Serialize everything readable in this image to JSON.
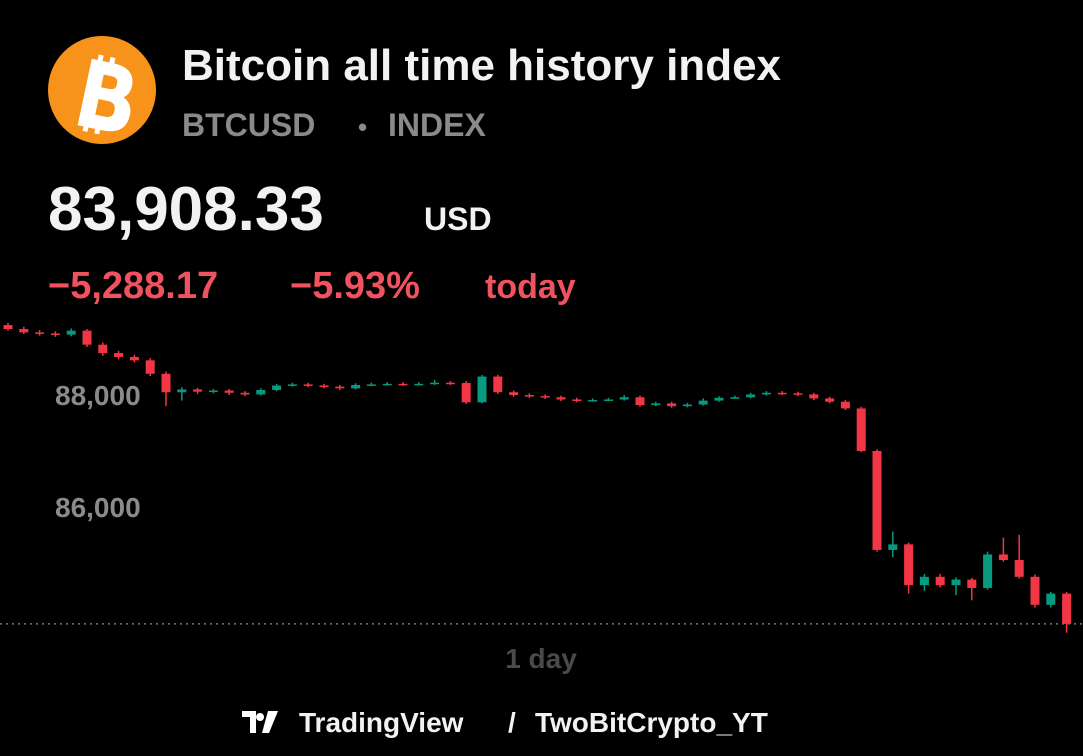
{
  "header": {
    "title": "Bitcoin all time history index",
    "symbol": "BTCUSD",
    "dot": "•",
    "exchange": "INDEX",
    "price": "83,908.33",
    "currency": "USD",
    "change": "−5,288.17",
    "change_percent": "−5.93%",
    "period": "today"
  },
  "chart_data": {
    "type": "candlestick",
    "up_color": "#089981",
    "down_color": "#f23645",
    "ylim": [
      83620,
      89520
    ],
    "yticks": [
      {
        "value": 88000,
        "label": "88,000"
      },
      {
        "value": 86000,
        "label": "86,000"
      }
    ],
    "x_label": "1 day",
    "ohlc": [
      [
        89250,
        89290,
        89150,
        89180
      ],
      [
        89180,
        89220,
        89090,
        89120
      ],
      [
        89120,
        89160,
        89060,
        89100
      ],
      [
        89100,
        89140,
        89040,
        89080
      ],
      [
        89080,
        89190,
        89050,
        89150
      ],
      [
        89150,
        89180,
        88860,
        88900
      ],
      [
        88900,
        88940,
        88700,
        88750
      ],
      [
        88750,
        88790,
        88640,
        88680
      ],
      [
        88680,
        88720,
        88580,
        88620
      ],
      [
        88620,
        88660,
        88340,
        88380
      ],
      [
        88380,
        88420,
        87800,
        88050
      ],
      [
        88050,
        88140,
        87900,
        88100
      ],
      [
        88100,
        88130,
        88020,
        88060
      ],
      [
        88060,
        88110,
        88030,
        88080
      ],
      [
        88080,
        88110,
        88000,
        88040
      ],
      [
        88040,
        88070,
        87980,
        88010
      ],
      [
        88010,
        88120,
        87990,
        88090
      ],
      [
        88090,
        88200,
        88070,
        88170
      ],
      [
        88170,
        88220,
        88150,
        88190
      ],
      [
        88190,
        88220,
        88140,
        88170
      ],
      [
        88170,
        88200,
        88120,
        88150
      ],
      [
        88150,
        88180,
        88090,
        88120
      ],
      [
        88120,
        88210,
        88100,
        88180
      ],
      [
        88180,
        88220,
        88160,
        88190
      ],
      [
        88190,
        88230,
        88170,
        88200
      ],
      [
        88200,
        88230,
        88160,
        88190
      ],
      [
        88190,
        88230,
        88170,
        88200
      ],
      [
        88200,
        88270,
        88180,
        88220
      ],
      [
        88220,
        88250,
        88180,
        88210
      ],
      [
        88215,
        88250,
        87840,
        87870
      ],
      [
        87870,
        88360,
        87850,
        88330
      ],
      [
        88330,
        88360,
        88020,
        88050
      ],
      [
        88050,
        88080,
        87970,
        88000
      ],
      [
        88000,
        88030,
        87950,
        87980
      ],
      [
        87980,
        88010,
        87930,
        87960
      ],
      [
        87960,
        87990,
        87890,
        87920
      ],
      [
        87920,
        87950,
        87870,
        87900
      ],
      [
        87900,
        87940,
        87880,
        87910
      ],
      [
        87910,
        87950,
        87890,
        87920
      ],
      [
        87920,
        88000,
        87900,
        87960
      ],
      [
        87960,
        87990,
        87790,
        87820
      ],
      [
        87820,
        87880,
        87800,
        87850
      ],
      [
        87850,
        87880,
        87770,
        87800
      ],
      [
        87800,
        87860,
        87780,
        87830
      ],
      [
        87830,
        87940,
        87810,
        87900
      ],
      [
        87900,
        87980,
        87880,
        87950
      ],
      [
        87950,
        87990,
        87930,
        87960
      ],
      [
        87960,
        88040,
        87940,
        88010
      ],
      [
        88010,
        88070,
        87990,
        88040
      ],
      [
        88040,
        88070,
        88000,
        88030
      ],
      [
        88030,
        88060,
        87980,
        88010
      ],
      [
        88010,
        88040,
        87910,
        87940
      ],
      [
        87940,
        87970,
        87850,
        87880
      ],
      [
        87880,
        87910,
        87730,
        87760
      ],
      [
        87760,
        87790,
        86980,
        87000
      ],
      [
        87000,
        87030,
        85200,
        85230
      ],
      [
        85230,
        85560,
        85100,
        85330
      ],
      [
        85330,
        85360,
        84450,
        84600
      ],
      [
        84600,
        84800,
        84500,
        84750
      ],
      [
        84750,
        84800,
        84560,
        84600
      ],
      [
        84600,
        84740,
        84420,
        84700
      ],
      [
        84700,
        84730,
        84330,
        84550
      ],
      [
        84550,
        85200,
        84520,
        85150
      ],
      [
        85150,
        85450,
        85020,
        85050
      ],
      [
        85050,
        85500,
        84720,
        84750
      ],
      [
        84750,
        84790,
        84200,
        84250
      ],
      [
        84250,
        84480,
        84200,
        84450
      ],
      [
        84450,
        84480,
        83750,
        83908.33
      ]
    ]
  },
  "footer": {
    "brand": "TradingView",
    "separator": "/",
    "author": "TwoBitCrypto_YT"
  }
}
